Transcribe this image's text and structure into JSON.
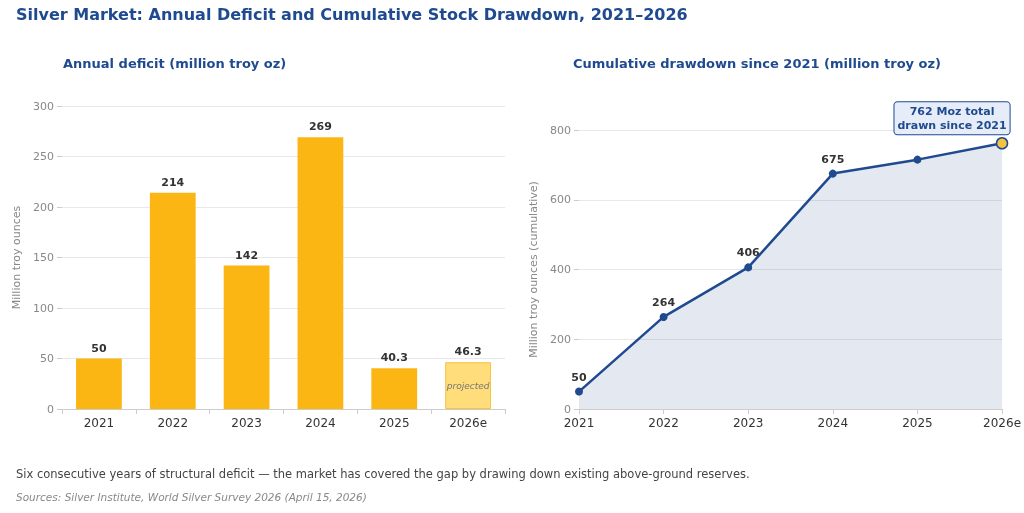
{
  "chart_data": [
    {
      "type": "bar",
      "title": "Silver Market: Annual Deficit and Cumulative Stock Drawdown, 2021–2026",
      "subtitle": "Annual deficit (million troy oz)",
      "ylabel": "Million troy ounces",
      "categories": [
        "2021",
        "2022",
        "2023",
        "2024",
        "2025",
        "2026e"
      ],
      "values": [
        50,
        214,
        142,
        269,
        40.3,
        46.3
      ],
      "colors": [
        "#fbb614",
        "#fbb614",
        "#fbb614",
        "#fbb614",
        "#fbb614",
        "#fedd7a"
      ],
      "ylim": [
        0,
        300
      ],
      "yticks": [
        0,
        50,
        100,
        150,
        200,
        250,
        300
      ],
      "grid": "y",
      "data_labels": true,
      "annotations": [
        {
          "text": "projected",
          "x": "2026e",
          "y": 46.3
        },
        "Six consecutive years of structural deficit — the market has covered the gap by drawing down existing above-ground reserves.",
        "Sources: Silver Institute, World Silver Survey 2026 (April 15, 2026)"
      ]
    },
    {
      "type": "area",
      "title": "Cumulative drawdown since 2021 (million troy oz)",
      "ylabel": "Million troy ounces (cumulative)",
      "categories": [
        "2021",
        "2022",
        "2023",
        "2024",
        "2025",
        "2026e"
      ],
      "series": [
        {
          "color": "#1f4a8f",
          "colors": [
            "#1f4a8f",
            "#1f4a8f",
            "#1f4a8f",
            "#1f4a8f",
            "#1f4a8f",
            "#f5c242"
          ],
          "values": [
            50,
            264,
            406,
            675,
            715,
            762
          ],
          "value_labels": [
            "50",
            "264",
            "406",
            "675",
            null,
            null
          ]
        }
      ],
      "ylim": [
        0,
        800
      ],
      "yticks": [
        0,
        200,
        400,
        600,
        800
      ],
      "grid": "y",
      "marker": "circle",
      "line_style": "solid",
      "annotations": [
        {
          "text": "762 Moz total\ndrawn since 2021",
          "x": "2026e",
          "y": 762
        }
      ]
    }
  ]
}
